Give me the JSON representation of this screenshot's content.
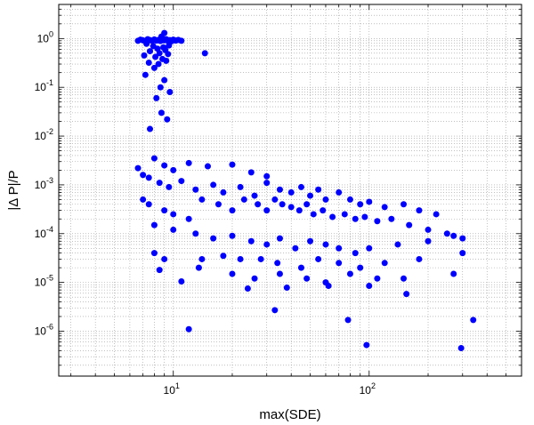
{
  "chart_data": {
    "type": "scatter",
    "title": "",
    "xlabel": "max(SDE)",
    "ylabel": "|Δ P|/P",
    "x_scale": "log",
    "y_scale": "log",
    "xlim": [
      2.6,
      600
    ],
    "ylim": [
      1.2e-07,
      5
    ],
    "grid": true,
    "grid_style": "dotted",
    "marker_color": "#0000ff",
    "x_ticks": [
      {
        "value": 10,
        "base": "10",
        "exp": "1"
      },
      {
        "value": 100,
        "base": "10",
        "exp": "2"
      }
    ],
    "y_ticks": [
      {
        "value": 1e-06,
        "base": "10",
        "exp": "-6"
      },
      {
        "value": 1e-05,
        "base": "10",
        "exp": "-5"
      },
      {
        "value": 0.0001,
        "base": "10",
        "exp": "-4"
      },
      {
        "value": 0.001,
        "base": "10",
        "exp": "-3"
      },
      {
        "value": 0.01,
        "base": "10",
        "exp": "-2"
      },
      {
        "value": 0.1,
        "base": "10",
        "exp": "-1"
      },
      {
        "value": 1,
        "base": "10",
        "exp": "0"
      }
    ],
    "series": [
      {
        "points": [
          [
            6.6,
            0.9
          ],
          [
            6.8,
            0.95
          ],
          [
            7.0,
            0.92
          ],
          [
            7.2,
            0.88
          ],
          [
            7.4,
            0.97
          ],
          [
            7.6,
            0.93
          ],
          [
            7.8,
            0.9
          ],
          [
            8.0,
            0.96
          ],
          [
            8.2,
            0.91
          ],
          [
            8.4,
            0.94
          ],
          [
            8.6,
            0.89
          ],
          [
            8.8,
            0.95
          ],
          [
            9.0,
            0.92
          ],
          [
            9.2,
            0.97
          ],
          [
            9.4,
            0.9
          ],
          [
            9.6,
            0.93
          ],
          [
            9.8,
            0.88
          ],
          [
            10.0,
            0.95
          ],
          [
            10.3,
            0.91
          ],
          [
            10.6,
            0.94
          ],
          [
            11.0,
            0.9
          ],
          [
            9.0,
            1.3
          ],
          [
            8.7,
            1.1
          ],
          [
            7.3,
            0.78
          ],
          [
            7.9,
            0.7
          ],
          [
            8.3,
            0.62
          ],
          [
            8.9,
            0.66
          ],
          [
            9.5,
            0.72
          ],
          [
            7.6,
            0.55
          ],
          [
            8.5,
            0.5
          ],
          [
            9.1,
            0.58
          ],
          [
            7.1,
            0.45
          ],
          [
            8.1,
            0.42
          ],
          [
            8.8,
            0.38
          ],
          [
            9.4,
            0.48
          ],
          [
            7.5,
            0.32
          ],
          [
            8.4,
            0.3
          ],
          [
            9.2,
            0.35
          ],
          [
            8.0,
            0.25
          ],
          [
            14.5,
            0.5
          ],
          [
            7.2,
            0.18
          ],
          [
            8.6,
            0.1
          ],
          [
            9.0,
            0.14
          ],
          [
            9.6,
            0.08
          ],
          [
            8.2,
            0.06
          ],
          [
            8.7,
            0.03
          ],
          [
            9.3,
            0.022
          ],
          [
            7.6,
            0.014
          ],
          [
            6.6,
            0.0022
          ],
          [
            7.0,
            0.0016
          ],
          [
            7.5,
            0.0014
          ],
          [
            8.0,
            0.0035
          ],
          [
            9.0,
            0.0025
          ],
          [
            10.0,
            0.002
          ],
          [
            12.0,
            0.0028
          ],
          [
            15.0,
            0.0024
          ],
          [
            20.0,
            0.0026
          ],
          [
            25.0,
            0.0018
          ],
          [
            30.0,
            0.0015
          ],
          [
            8.5,
            0.0011
          ],
          [
            9.5,
            0.0009
          ],
          [
            11.0,
            0.0012
          ],
          [
            13.0,
            0.0008
          ],
          [
            16.0,
            0.001
          ],
          [
            18.0,
            0.0007
          ],
          [
            22.0,
            0.0009
          ],
          [
            26.0,
            0.0006
          ],
          [
            30.0,
            0.0011
          ],
          [
            35.0,
            0.0008
          ],
          [
            40.0,
            0.0007
          ],
          [
            45.0,
            0.0009
          ],
          [
            50.0,
            0.0006
          ],
          [
            55.0,
            0.0008
          ],
          [
            60.0,
            0.0005
          ],
          [
            70.0,
            0.0007
          ],
          [
            80.0,
            0.0005
          ],
          [
            90.0,
            0.0004
          ],
          [
            100.0,
            0.00045
          ],
          [
            120.0,
            0.00035
          ],
          [
            150.0,
            0.0004
          ],
          [
            180.0,
            0.0003
          ],
          [
            220.0,
            0.00025
          ],
          [
            7.0,
            0.0005
          ],
          [
            7.5,
            0.0004
          ],
          [
            9.0,
            0.0003
          ],
          [
            10.0,
            0.00025
          ],
          [
            12.0,
            0.0002
          ],
          [
            14.0,
            0.0005
          ],
          [
            17.0,
            0.0004
          ],
          [
            20.0,
            0.0003
          ],
          [
            23.0,
            0.0005
          ],
          [
            27.0,
            0.0004
          ],
          [
            30.0,
            0.0003
          ],
          [
            33.0,
            0.0005
          ],
          [
            36.0,
            0.0004
          ],
          [
            40.0,
            0.00035
          ],
          [
            44.0,
            0.0003
          ],
          [
            48.0,
            0.0004
          ],
          [
            52.0,
            0.00025
          ],
          [
            58.0,
            0.0003
          ],
          [
            65.0,
            0.00022
          ],
          [
            75.0,
            0.00025
          ],
          [
            85.0,
            0.0002
          ],
          [
            95.0,
            0.00022
          ],
          [
            110.0,
            0.00018
          ],
          [
            130.0,
            0.0002
          ],
          [
            160.0,
            0.00015
          ],
          [
            200.0,
            0.00012
          ],
          [
            250.0,
            0.0001
          ],
          [
            300.0,
            8e-05
          ],
          [
            8.0,
            0.00015
          ],
          [
            10.0,
            0.00012
          ],
          [
            13.0,
            0.0001
          ],
          [
            16.0,
            8e-05
          ],
          [
            20.0,
            9e-05
          ],
          [
            25.0,
            7e-05
          ],
          [
            30.0,
            6e-05
          ],
          [
            35.0,
            8e-05
          ],
          [
            42.0,
            5e-05
          ],
          [
            50.0,
            7e-05
          ],
          [
            60.0,
            6e-05
          ],
          [
            70.0,
            5e-05
          ],
          [
            85.0,
            4e-05
          ],
          [
            100.0,
            5e-05
          ],
          [
            140.0,
            6e-05
          ],
          [
            200.0,
            7e-05
          ],
          [
            270.0,
            9e-05
          ],
          [
            8.0,
            4e-05
          ],
          [
            9.0,
            3e-05
          ],
          [
            14.0,
            3e-05
          ],
          [
            18.0,
            3.5e-05
          ],
          [
            22.0,
            3e-05
          ],
          [
            28.0,
            3e-05
          ],
          [
            34.0,
            2.5e-05
          ],
          [
            45.0,
            2e-05
          ],
          [
            55.0,
            3e-05
          ],
          [
            70.0,
            2.5e-05
          ],
          [
            90.0,
            2e-05
          ],
          [
            120.0,
            2.5e-05
          ],
          [
            180.0,
            3e-05
          ],
          [
            300.0,
            4e-05
          ],
          [
            8.5,
            1.8e-05
          ],
          [
            13.5,
            2e-05
          ],
          [
            20.0,
            1.5e-05
          ],
          [
            26.0,
            1.2e-05
          ],
          [
            35.0,
            1.5e-05
          ],
          [
            48.0,
            1.2e-05
          ],
          [
            60.0,
            1e-05
          ],
          [
            80.0,
            1.5e-05
          ],
          [
            110.0,
            1.2e-05
          ],
          [
            150.0,
            1.2e-05
          ],
          [
            270.0,
            1.5e-05
          ],
          [
            11.0,
            1.05e-05
          ],
          [
            24.0,
            7.5e-06
          ],
          [
            38.0,
            7.8e-06
          ],
          [
            62.0,
            8.5e-06
          ],
          [
            100.0,
            8.5e-06
          ],
          [
            155.0,
            5.8e-06
          ],
          [
            33.0,
            2.7e-06
          ],
          [
            12.0,
            1.1e-06
          ],
          [
            78.0,
            1.7e-06
          ],
          [
            340.0,
            1.7e-06
          ],
          [
            97.0,
            5.2e-07
          ],
          [
            295.0,
            4.5e-07
          ]
        ]
      }
    ]
  }
}
